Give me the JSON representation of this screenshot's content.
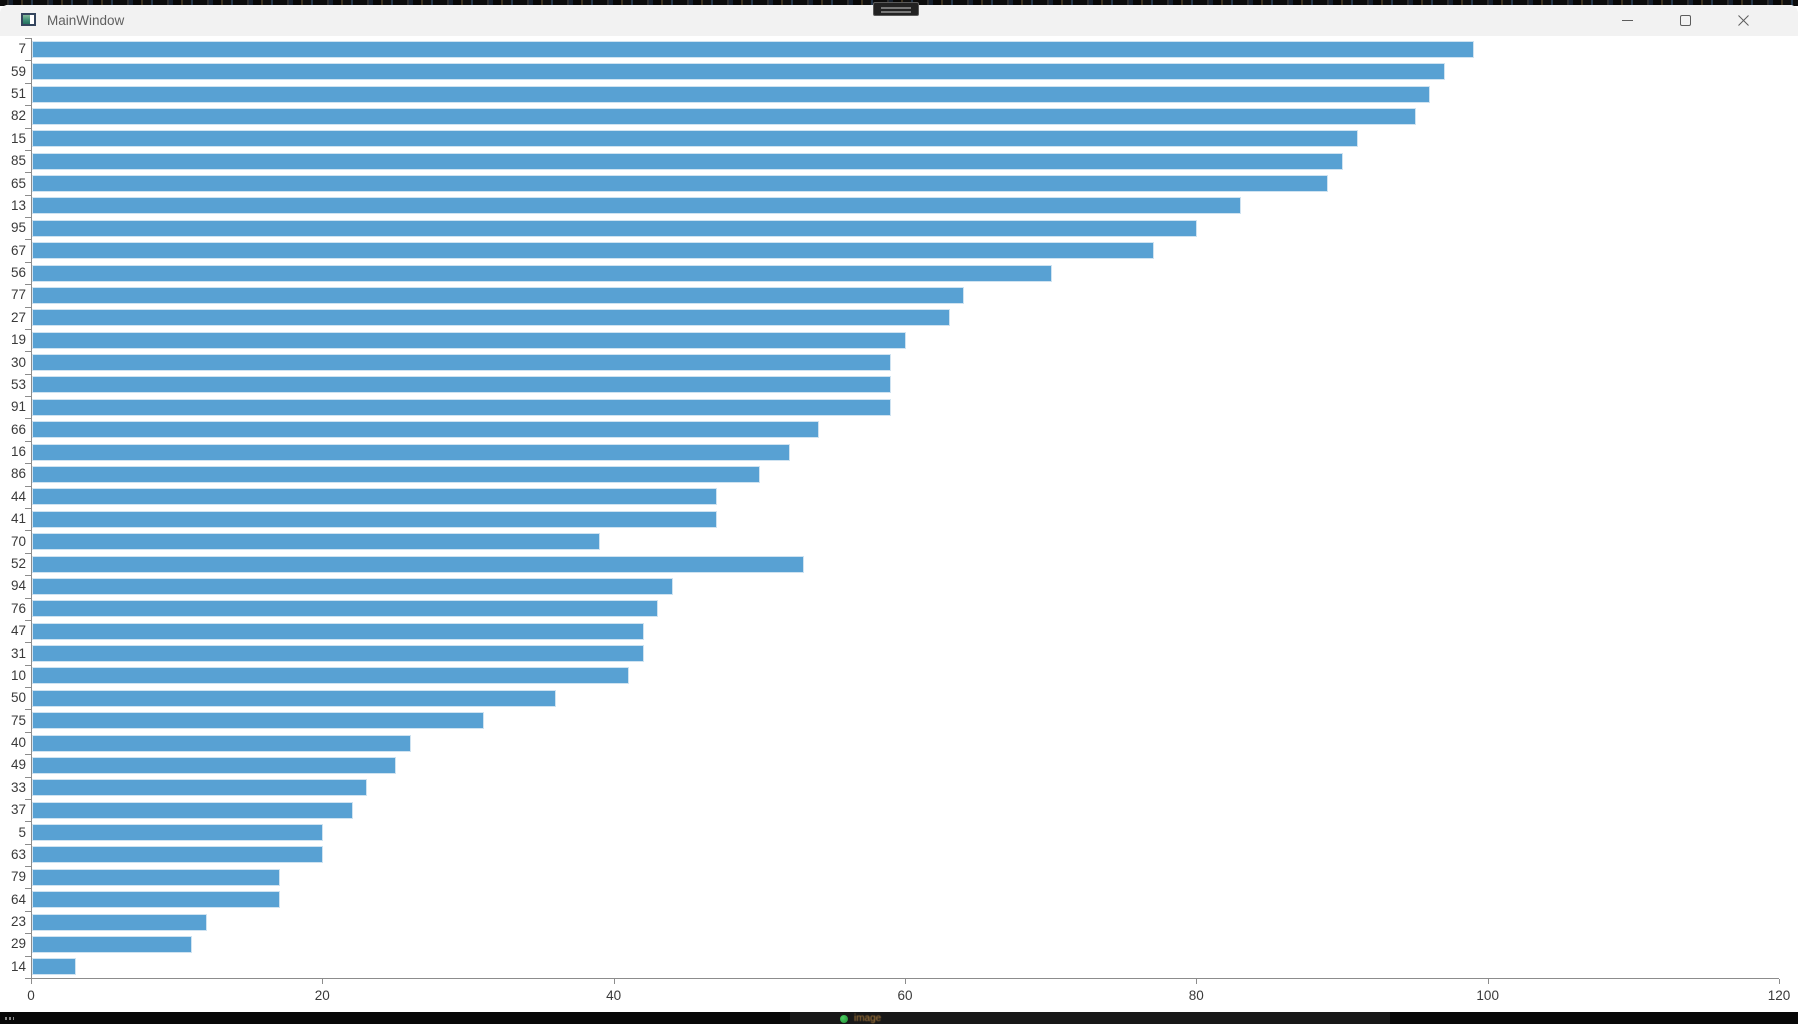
{
  "window": {
    "title": "MainWindow",
    "controls": {
      "minimize": "minimize",
      "maximize": "maximize",
      "close": "close"
    }
  },
  "icons": {
    "app_icon": "qt-window-icon",
    "minimize": "horizontal-line",
    "maximize": "square-outline",
    "close": "x-cross",
    "taskbar_dot": "green-status-dot",
    "peek_tab": "grab-handle-two-lines"
  },
  "taskbar": {
    "text_fragment": "image"
  },
  "chart_data": {
    "type": "bar",
    "orientation": "horizontal",
    "title": "",
    "xlabel": "",
    "ylabel": "",
    "categories": [
      "7",
      "59",
      "51",
      "82",
      "15",
      "85",
      "65",
      "13",
      "95",
      "67",
      "56",
      "77",
      "27",
      "19",
      "30",
      "53",
      "91",
      "66",
      "16",
      "86",
      "44",
      "41",
      "70",
      "52",
      "94",
      "76",
      "47",
      "31",
      "10",
      "50",
      "75",
      "40",
      "49",
      "33",
      "37",
      "5",
      "63",
      "79",
      "64",
      "23",
      "29",
      "14"
    ],
    "values": [
      99,
      97,
      96,
      95,
      91,
      90,
      89,
      83,
      80,
      77,
      70,
      64,
      63,
      60,
      59,
      59,
      59,
      54,
      52,
      50,
      47,
      47,
      39,
      53,
      44,
      43,
      42,
      42,
      41,
      36,
      31,
      26,
      25,
      23,
      22,
      20,
      20,
      17,
      17,
      12,
      11,
      3
    ],
    "xlim": [
      0,
      120
    ],
    "x_ticks": [
      0,
      20,
      40,
      60,
      80,
      100,
      120
    ],
    "grid": false,
    "legend": null,
    "bar_color": "#58a1d3",
    "bar_edge_color": "#cfe3f1",
    "axis_color": "#8c8c8c",
    "tick_label_color": "#3a3a3a"
  }
}
